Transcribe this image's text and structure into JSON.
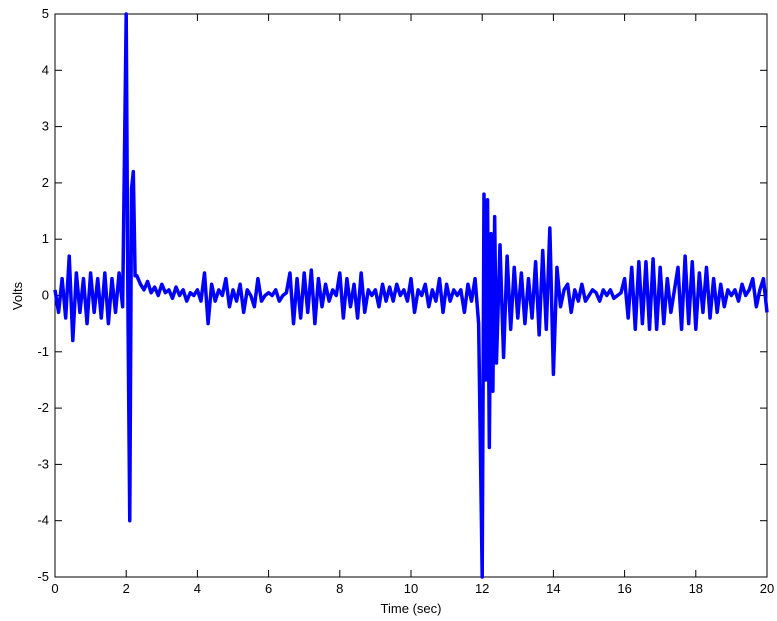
{
  "chart_data": {
    "type": "line",
    "xlabel": "Time (sec)",
    "ylabel": "Volts",
    "xlim": [
      0,
      20
    ],
    "ylim": [
      -5,
      5
    ],
    "xticks": [
      0,
      2,
      4,
      6,
      8,
      10,
      12,
      14,
      16,
      18,
      20
    ],
    "yticks": [
      -5,
      -4,
      -3,
      -2,
      -1,
      0,
      1,
      2,
      3,
      4,
      5
    ],
    "x": [
      0,
      0.1,
      0.2,
      0.3,
      0.4,
      0.5,
      0.6,
      0.7,
      0.8,
      0.9,
      1,
      1.1,
      1.2,
      1.3,
      1.4,
      1.5,
      1.6,
      1.7,
      1.8,
      1.9,
      2,
      2.05,
      2.1,
      2.15,
      2.2,
      2.25,
      2.3,
      2.4,
      2.5,
      2.6,
      2.7,
      2.8,
      2.9,
      3,
      3.1,
      3.2,
      3.3,
      3.4,
      3.5,
      3.6,
      3.7,
      3.8,
      3.9,
      4,
      4.1,
      4.2,
      4.3,
      4.4,
      4.5,
      4.6,
      4.7,
      4.8,
      4.9,
      5,
      5.1,
      5.2,
      5.3,
      5.4,
      5.5,
      5.6,
      5.7,
      5.8,
      5.9,
      6,
      6.1,
      6.2,
      6.3,
      6.4,
      6.5,
      6.6,
      6.7,
      6.8,
      6.9,
      7,
      7.1,
      7.2,
      7.3,
      7.4,
      7.5,
      7.6,
      7.7,
      7.8,
      7.9,
      8,
      8.1,
      8.2,
      8.3,
      8.4,
      8.5,
      8.6,
      8.7,
      8.8,
      8.9,
      9,
      9.1,
      9.2,
      9.3,
      9.4,
      9.5,
      9.6,
      9.7,
      9.8,
      9.9,
      10,
      10.1,
      10.2,
      10.3,
      10.4,
      10.5,
      10.6,
      10.7,
      10.8,
      10.9,
      11,
      11.1,
      11.2,
      11.3,
      11.4,
      11.5,
      11.6,
      11.7,
      11.8,
      11.9,
      12,
      12.05,
      12.1,
      12.15,
      12.2,
      12.25,
      12.3,
      12.35,
      12.4,
      12.5,
      12.6,
      12.7,
      12.8,
      12.9,
      13,
      13.1,
      13.2,
      13.3,
      13.4,
      13.5,
      13.6,
      13.7,
      13.8,
      13.9,
      14,
      14.1,
      14.2,
      14.3,
      14.4,
      14.5,
      14.6,
      14.7,
      14.8,
      14.9,
      15,
      15.1,
      15.2,
      15.3,
      15.4,
      15.5,
      15.6,
      15.7,
      15.8,
      15.9,
      16,
      16.1,
      16.2,
      16.3,
      16.4,
      16.5,
      16.6,
      16.7,
      16.8,
      16.9,
      17,
      17.1,
      17.2,
      17.3,
      17.4,
      17.5,
      17.6,
      17.7,
      17.8,
      17.9,
      18,
      18.1,
      18.2,
      18.3,
      18.4,
      18.5,
      18.6,
      18.7,
      18.8,
      18.9,
      19,
      19.1,
      19.2,
      19.3,
      19.4,
      19.5,
      19.6,
      19.7,
      19.8,
      19.9,
      20
    ],
    "series": [
      {
        "color": "#0000ff",
        "values": [
          0.1,
          -0.3,
          0.3,
          -0.4,
          0.7,
          -0.8,
          0.4,
          -0.3,
          0.3,
          -0.5,
          0.4,
          -0.3,
          0.3,
          -0.4,
          0.4,
          -0.5,
          0.3,
          -0.3,
          0.4,
          -0.2,
          5,
          -0.3,
          -4,
          1.9,
          2.2,
          0.35,
          0.35,
          0.2,
          0.1,
          0.25,
          0.05,
          0.15,
          0.0,
          0.2,
          0.05,
          0.1,
          -0.05,
          0.15,
          0.0,
          0.1,
          -0.1,
          0.05,
          0.0,
          0.1,
          -0.1,
          0.4,
          -0.5,
          0.2,
          -0.1,
          0.1,
          0.0,
          0.3,
          -0.2,
          0.1,
          -0.1,
          0.2,
          -0.3,
          0.1,
          0.0,
          -0.2,
          0.3,
          -0.1,
          0.0,
          0.05,
          0.0,
          0.1,
          -0.1,
          0.0,
          0.05,
          0.4,
          -0.5,
          0.3,
          -0.4,
          0.4,
          -0.3,
          0.45,
          -0.5,
          0.3,
          -0.2,
          0.2,
          -0.1,
          0.1,
          0.0,
          0.4,
          -0.4,
          0.3,
          -0.2,
          0.2,
          -0.4,
          0.4,
          -0.3,
          0.1,
          0.0,
          0.1,
          -0.2,
          0.2,
          -0.1,
          0.15,
          -0.1,
          0.2,
          0.0,
          0.1,
          -0.1,
          0.3,
          -0.3,
          0.1,
          0.0,
          0.2,
          -0.2,
          0.1,
          -0.1,
          0.3,
          -0.3,
          0.2,
          -0.1,
          0.1,
          0.0,
          0.1,
          -0.3,
          0.2,
          -0.1,
          0.3,
          -0.5,
          -5,
          1.8,
          -1.5,
          1.7,
          -2.7,
          1.1,
          -1.7,
          1.4,
          -1.2,
          0.9,
          -1.1,
          0.7,
          -0.6,
          0.5,
          -0.4,
          0.4,
          -0.5,
          0.3,
          -0.4,
          0.6,
          -0.7,
          0.8,
          -0.6,
          1.2,
          -1.4,
          0.5,
          -0.2,
          0.1,
          0.2,
          -0.3,
          0.1,
          -0.1,
          0.2,
          -0.1,
          0.0,
          0.1,
          0.05,
          -0.1,
          0.1,
          0.0,
          0.1,
          -0.05,
          0.0,
          0.05,
          0.3,
          -0.4,
          0.5,
          -0.6,
          0.6,
          -0.5,
          0.6,
          -0.6,
          0.65,
          -0.6,
          0.5,
          -0.5,
          0.3,
          -0.3,
          0.1,
          0.5,
          -0.6,
          0.7,
          -0.5,
          0.6,
          -0.6,
          0.4,
          -0.3,
          0.5,
          -0.4,
          0.3,
          -0.3,
          0.2,
          -0.2,
          0.1,
          0.0,
          0.1,
          -0.1,
          0.2,
          0.0,
          0.1,
          0.3,
          -0.2,
          0.1,
          0.3,
          -0.3
        ]
      }
    ]
  }
}
